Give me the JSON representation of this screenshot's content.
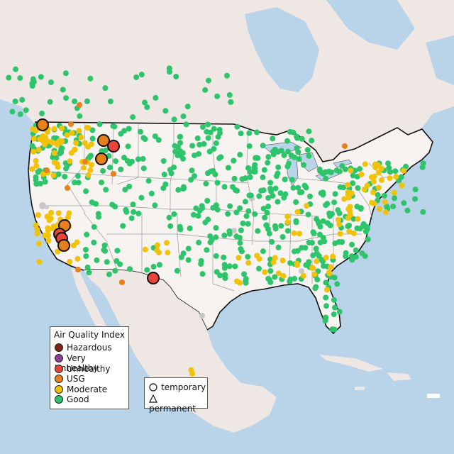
{
  "legend": {
    "title": "Air Quality Index",
    "categories": [
      {
        "label": "Hazardous",
        "color": "#7e2418"
      },
      {
        "label": "Very Unhealthy",
        "color": "#8f3f97"
      },
      {
        "label": "Unhealthy",
        "color": "#e8443a"
      },
      {
        "label": "USG",
        "color": "#e8801c"
      },
      {
        "label": "Moderate",
        "color": "#f2c20a"
      },
      {
        "label": "Good",
        "color": "#2ec46b"
      }
    ]
  },
  "shape_legend": {
    "temporary": "temporary",
    "permanent": "permanent"
  },
  "colors": {
    "water": "#b9d3e8",
    "land": "#f1ece8",
    "us_land": "#f6f3f0",
    "no_data": "#c8c8c8"
  }
}
